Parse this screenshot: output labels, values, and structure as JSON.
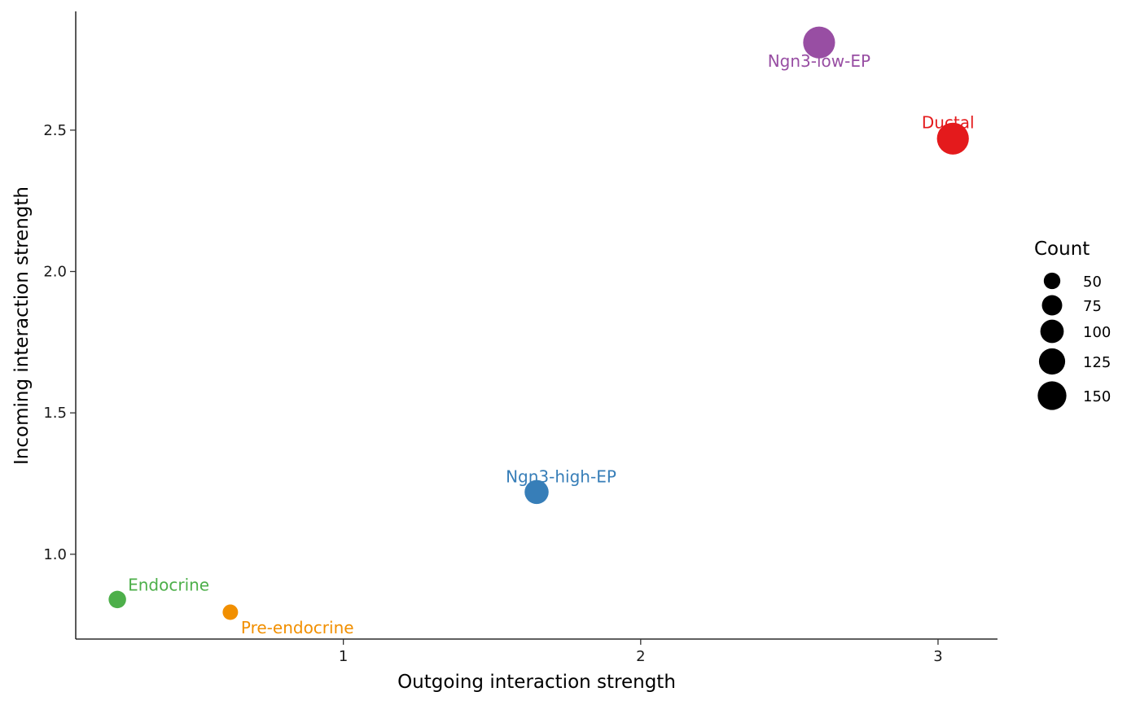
{
  "chart_data": {
    "type": "scatter",
    "xlabel": "Outgoing interaction strength",
    "ylabel": "Incoming interaction strength",
    "xlim": [
      0.1,
      3.2
    ],
    "ylim": [
      0.7,
      2.92
    ],
    "x_ticks": [
      1,
      2,
      3
    ],
    "y_ticks": [
      1.0,
      1.5,
      2.0,
      2.5
    ],
    "x_tick_labels": [
      "1",
      "2",
      "3"
    ],
    "y_tick_labels": [
      "1.0",
      "1.5",
      "2.0",
      "2.5"
    ],
    "grid": false,
    "legend": {
      "title": "Count",
      "placement": "right",
      "entries": [
        {
          "value": 50,
          "label": "50"
        },
        {
          "value": 75,
          "label": "75"
        },
        {
          "value": 100,
          "label": "100"
        },
        {
          "value": 125,
          "label": "125"
        },
        {
          "value": 150,
          "label": "150"
        }
      ]
    },
    "points": [
      {
        "name": "Ngn3-low-EP",
        "x": 2.6,
        "y": 2.81,
        "count": 150,
        "color": "#984EA3",
        "label_side": "below"
      },
      {
        "name": "Ductal",
        "x": 3.05,
        "y": 2.47,
        "count": 150,
        "color": "#E41A1C",
        "label_side": "above"
      },
      {
        "name": "Ngn3-high-EP",
        "x": 1.65,
        "y": 1.22,
        "count": 85,
        "color": "#377EB8",
        "label_side": "above"
      },
      {
        "name": "Endocrine",
        "x": 0.24,
        "y": 0.84,
        "count": 45,
        "color": "#4DAF4A",
        "label_side": "above-right"
      },
      {
        "name": "Pre-endocrine",
        "x": 0.62,
        "y": 0.795,
        "count": 35,
        "color": "#F18F00",
        "label_side": "below-right"
      }
    ]
  }
}
